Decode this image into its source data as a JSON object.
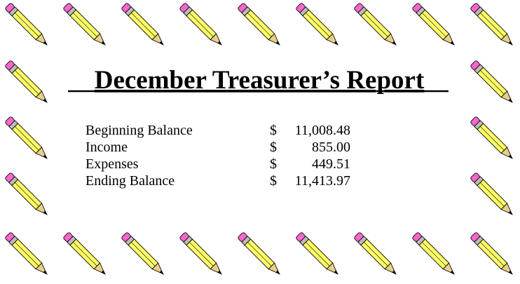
{
  "title": "December Treasurer’s Report",
  "rows": [
    {
      "label": "Beginning Balance",
      "currency": "$",
      "amount": "11,008.48"
    },
    {
      "label": "Income",
      "currency": "$",
      "amount": "855.00"
    },
    {
      "label": "Expenses",
      "currency": "$",
      "amount": "449.51"
    },
    {
      "label": "Ending Balance",
      "currency": "$",
      "amount": "11,413.97"
    }
  ]
}
